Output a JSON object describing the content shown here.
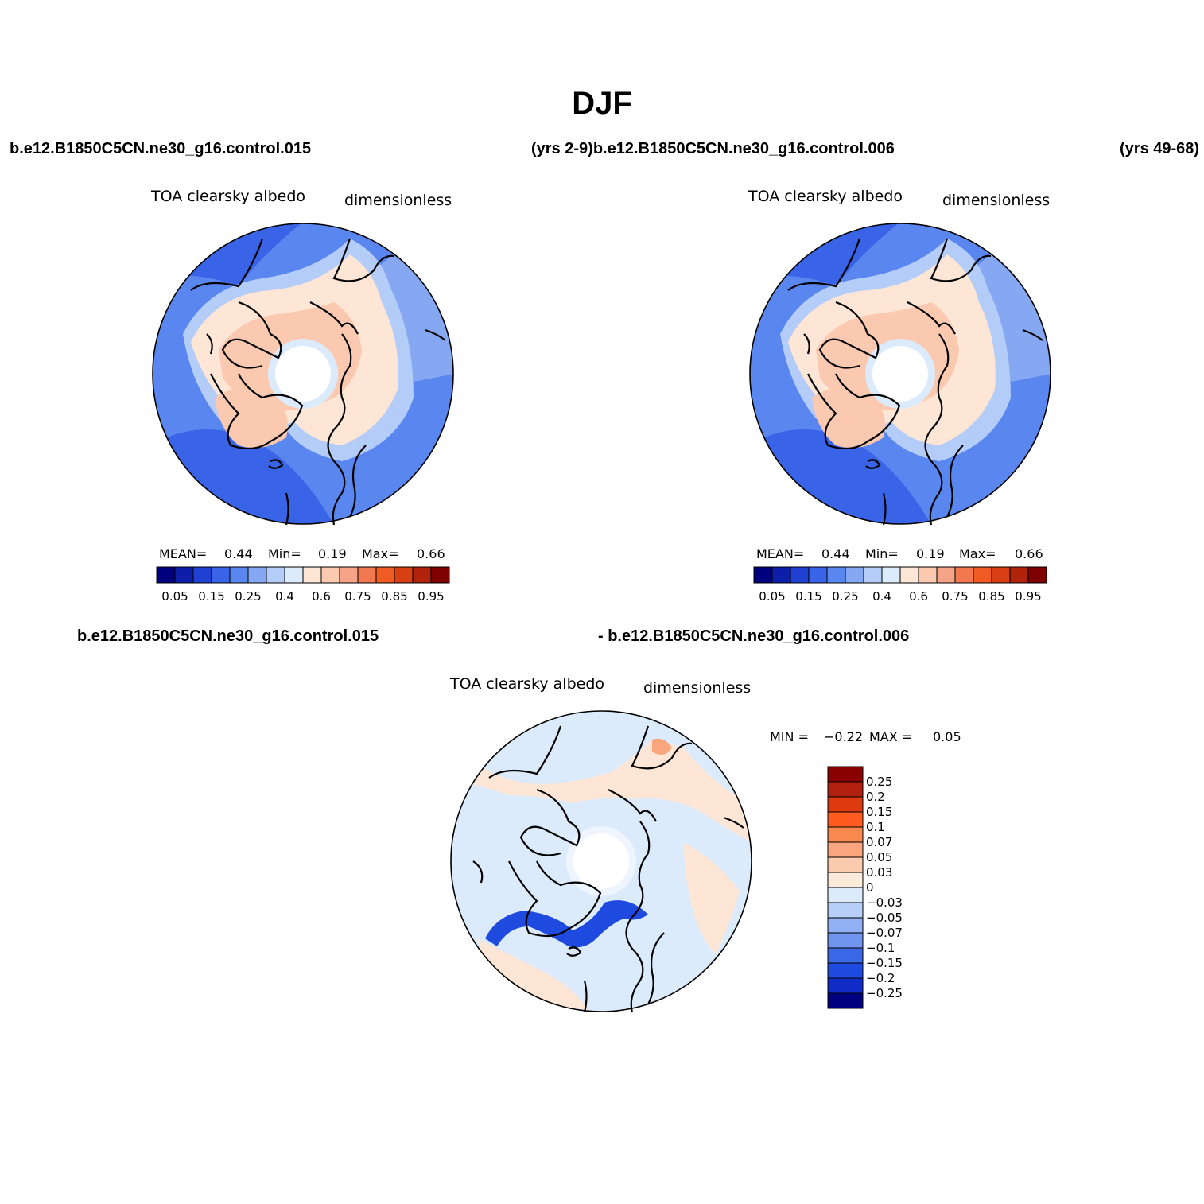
{
  "title": "DJF",
  "header_runs": {
    "left": "b.e12.B1850C5CN.ne30_g16.control.015",
    "mid": "(yrs 2-9)b.e12.B1850C5CN.ne30_g16.control.006",
    "right": "(yrs 49-68)"
  },
  "diff_runs": {
    "left": "b.e12.B1850C5CN.ne30_g16.control.015",
    "right": "- b.e12.B1850C5CN.ne30_g16.control.006"
  },
  "panels": [
    {
      "variable": "TOA clearsky albedo",
      "units": "dimensionless",
      "mean_label": "MEAN=",
      "mean": "0.44",
      "min_label": "Min=",
      "min": "0.19",
      "max_label": "Max=",
      "max": "0.66"
    },
    {
      "variable": "TOA clearsky albedo",
      "units": "dimensionless",
      "mean_label": "MEAN=",
      "mean": "0.44",
      "min_label": "Min=",
      "min": "0.19",
      "max_label": "Max=",
      "max": "0.66"
    },
    {
      "variable": "TOA clearsky albedo",
      "units": "dimensionless",
      "min_label": "MIN =",
      "min": "−0.22",
      "max_label": "MAX =",
      "max": "0.05"
    }
  ],
  "abs_colorbar": {
    "colors": [
      "#00007f",
      "#0d1fa8",
      "#1f40d0",
      "#3a64e8",
      "#5a87ef",
      "#86a8f2",
      "#b4ccf8",
      "#dcebfc",
      "#fde6d6",
      "#fbc8b0",
      "#f5a487",
      "#f2784f",
      "#f05a23",
      "#d93f15",
      "#b2230c",
      "#7f0000"
    ],
    "tick_labels": [
      "0.05",
      "0.15",
      "0.25",
      "0.4",
      "0.6",
      "0.75",
      "0.85",
      "0.95"
    ]
  },
  "diff_colorbar": {
    "colors": [
      "#8b0000",
      "#b22010",
      "#dd3a10",
      "#ff5a1f",
      "#f8884e",
      "#f9a67e",
      "#fbcbb0",
      "#fdebd9",
      "#dcebfc",
      "#b6cef8",
      "#91b1f4",
      "#6f95ef",
      "#3b68e6",
      "#1f4ae0",
      "#0f2dc6",
      "#000080"
    ],
    "tick_labels": [
      "0.25",
      "0.2",
      "0.15",
      "0.1",
      "0.07",
      "0.05",
      "0.03",
      "0",
      "−0.03",
      "−0.05",
      "−0.07",
      "−0.1",
      "−0.15",
      "−0.2",
      "−0.25"
    ]
  },
  "map_colors": {
    "ocean_deep": "#3a64e8",
    "ocean_mid": "#5a87ef",
    "ocean_light": "#86a8f2",
    "pale_blue": "#b4ccf8",
    "very_pale_blue": "#dcebfc",
    "land_light": "#fde6d6",
    "land_med": "#fbc8b0",
    "diff_background": "#dcebfc",
    "diff_positive": "#fde6d6",
    "diff_strong_negative": "#1f4ae0",
    "pole_hole": "#ffffff"
  }
}
